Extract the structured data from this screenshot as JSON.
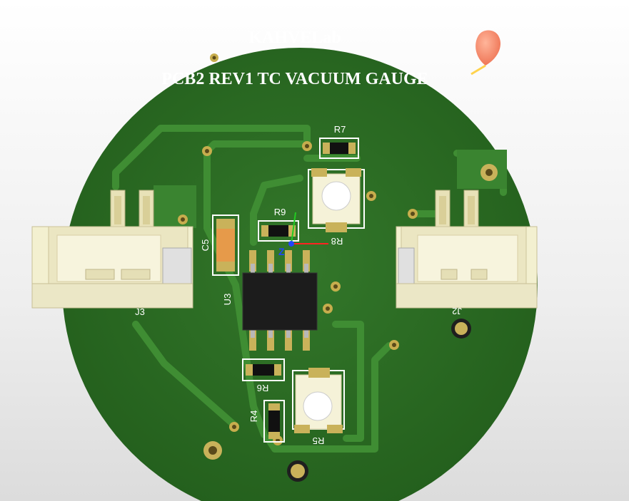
{
  "board": {
    "title_line1": "KAHVELab",
    "title_line2": "PCB2 REV1 TC VACUUM GAUGE"
  },
  "labels": {
    "r7": "R7",
    "r9": "R9",
    "r8": "R8",
    "r6": "R6",
    "r4": "R4",
    "r5": "R5",
    "c5": "C5",
    "u3": "U3",
    "j3": "J3",
    "j2": "J2"
  },
  "axis": {
    "z": "Z"
  },
  "colors": {
    "board": "#2c6e23",
    "copper_trace": "#3c8a30",
    "silkscreen": "#ffffff",
    "connector": "#f2efcc",
    "pad": "#c9b25a"
  }
}
